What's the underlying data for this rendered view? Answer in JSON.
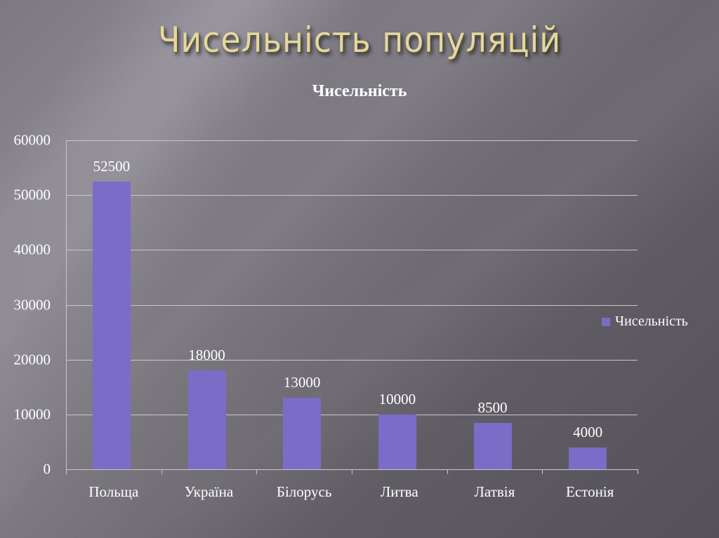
{
  "slide": {
    "title": "Чисельність популяцій"
  },
  "chart_data": {
    "type": "bar",
    "title": "Чисельність",
    "categories": [
      "Польща",
      "Україна",
      "Білорусь",
      "Литва",
      "Латвія",
      "Естонія"
    ],
    "series": [
      {
        "name": "Чисельність",
        "values": [
          52500,
          18000,
          13000,
          10000,
          8500,
          4000
        ],
        "color": "#7b6cc7"
      }
    ],
    "data_labels": [
      "52500",
      "18000",
      "13000",
      "10000",
      "8500",
      "4000"
    ],
    "xlabel": "",
    "ylabel": "",
    "ylim": [
      0,
      60000
    ],
    "yticks": [
      "0",
      "10000",
      "20000",
      "30000",
      "40000",
      "50000",
      "60000"
    ],
    "grid": true,
    "legend_position": "right"
  }
}
